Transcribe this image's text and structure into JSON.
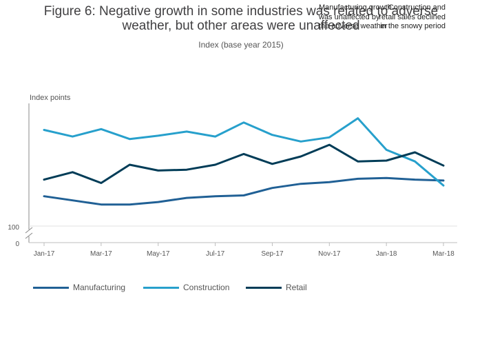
{
  "title": "Figure 6: Negative growth in some industries was related to adverse weather, but other areas were unaffected",
  "subtitle": "Index (base year 2015)",
  "annotations": [
    "Manufacturing growth\nwas unaffected by\nthe adverse weather",
    "Construction and\nretail sales declined\nin the snowy period"
  ],
  "chart_data": {
    "type": "line",
    "ylabel": "Index points",
    "xlabel": "",
    "x": [
      "Jan-17",
      "Feb-17",
      "Mar-17",
      "Apr-17",
      "May-17",
      "Jun-17",
      "Jul-17",
      "Aug-17",
      "Sep-17",
      "Oct-17",
      "Nov-17",
      "Dec-17",
      "Jan-18",
      "Feb-18",
      "Mar-18"
    ],
    "x_tick_labels": [
      "Jan-17",
      "Mar-17",
      "May-17",
      "Jul-17",
      "Sep-17",
      "Nov-17",
      "Jan-18",
      "Mar-18"
    ],
    "y_ticks": [
      0,
      100
    ],
    "axis_break": true,
    "ylim": [
      99.8,
      107.2
    ],
    "grid": false,
    "legend_position": "bottom-left",
    "series": [
      {
        "name": "Manufacturing",
        "color": "#206095",
        "values": [
          101.6,
          101.35,
          101.1,
          101.1,
          101.25,
          101.5,
          101.6,
          101.65,
          102.1,
          102.35,
          102.45,
          102.65,
          102.7,
          102.6,
          102.55
        ]
      },
      {
        "name": "Construction",
        "color": "#27a0cc",
        "values": [
          105.6,
          105.2,
          105.65,
          105.05,
          105.25,
          105.5,
          105.2,
          106.05,
          105.3,
          104.9,
          105.15,
          106.3,
          104.4,
          103.7,
          102.25
        ]
      },
      {
        "name": "Retail",
        "color": "#003c57",
        "values": [
          102.6,
          103.05,
          102.4,
          103.5,
          103.15,
          103.2,
          103.5,
          104.15,
          103.55,
          104.0,
          104.7,
          103.7,
          103.75,
          104.25,
          103.45
        ]
      }
    ]
  }
}
